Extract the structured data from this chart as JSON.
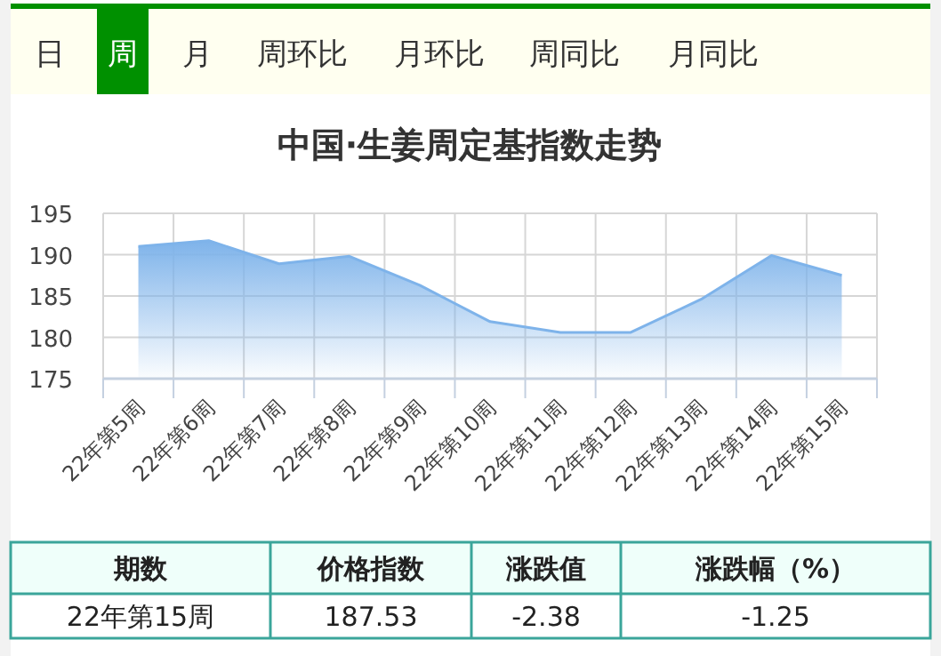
{
  "chart_data": [
    {
      "type": "other",
      "categories": [
        "日",
        "周",
        "月",
        "周环比",
        "月环比",
        "周同比",
        "月同比"
      ]
    },
    {
      "type": "area",
      "title": "中国·生姜周定基指数走势",
      "categories": [
        "22年第5周",
        "22年第6周",
        "22年第7周",
        "22年第8周",
        "22年第9周",
        "22年第10周",
        "22年第11周",
        "22年第12周",
        "22年第13周",
        "22年第14周",
        "22年第15周"
      ],
      "series": [
        {
          "color": "#7eb3ea",
          "values": [
            191.0,
            191.7,
            188.9,
            189.8,
            186.3,
            181.9,
            180.6,
            180.6,
            184.6,
            189.9,
            187.5
          ]
        }
      ],
      "ylim": [
        175,
        195
      ],
      "yticks": [
        175,
        180,
        185,
        190,
        195
      ],
      "grid": true
    },
    {
      "type": "other",
      "categories": [
        "期数",
        "价格指数",
        "涨跌值",
        "涨跌幅（%）"
      ],
      "annotations": [
        "22年第15周",
        "187.53",
        "-2.38",
        "-1.25"
      ]
    }
  ]
}
